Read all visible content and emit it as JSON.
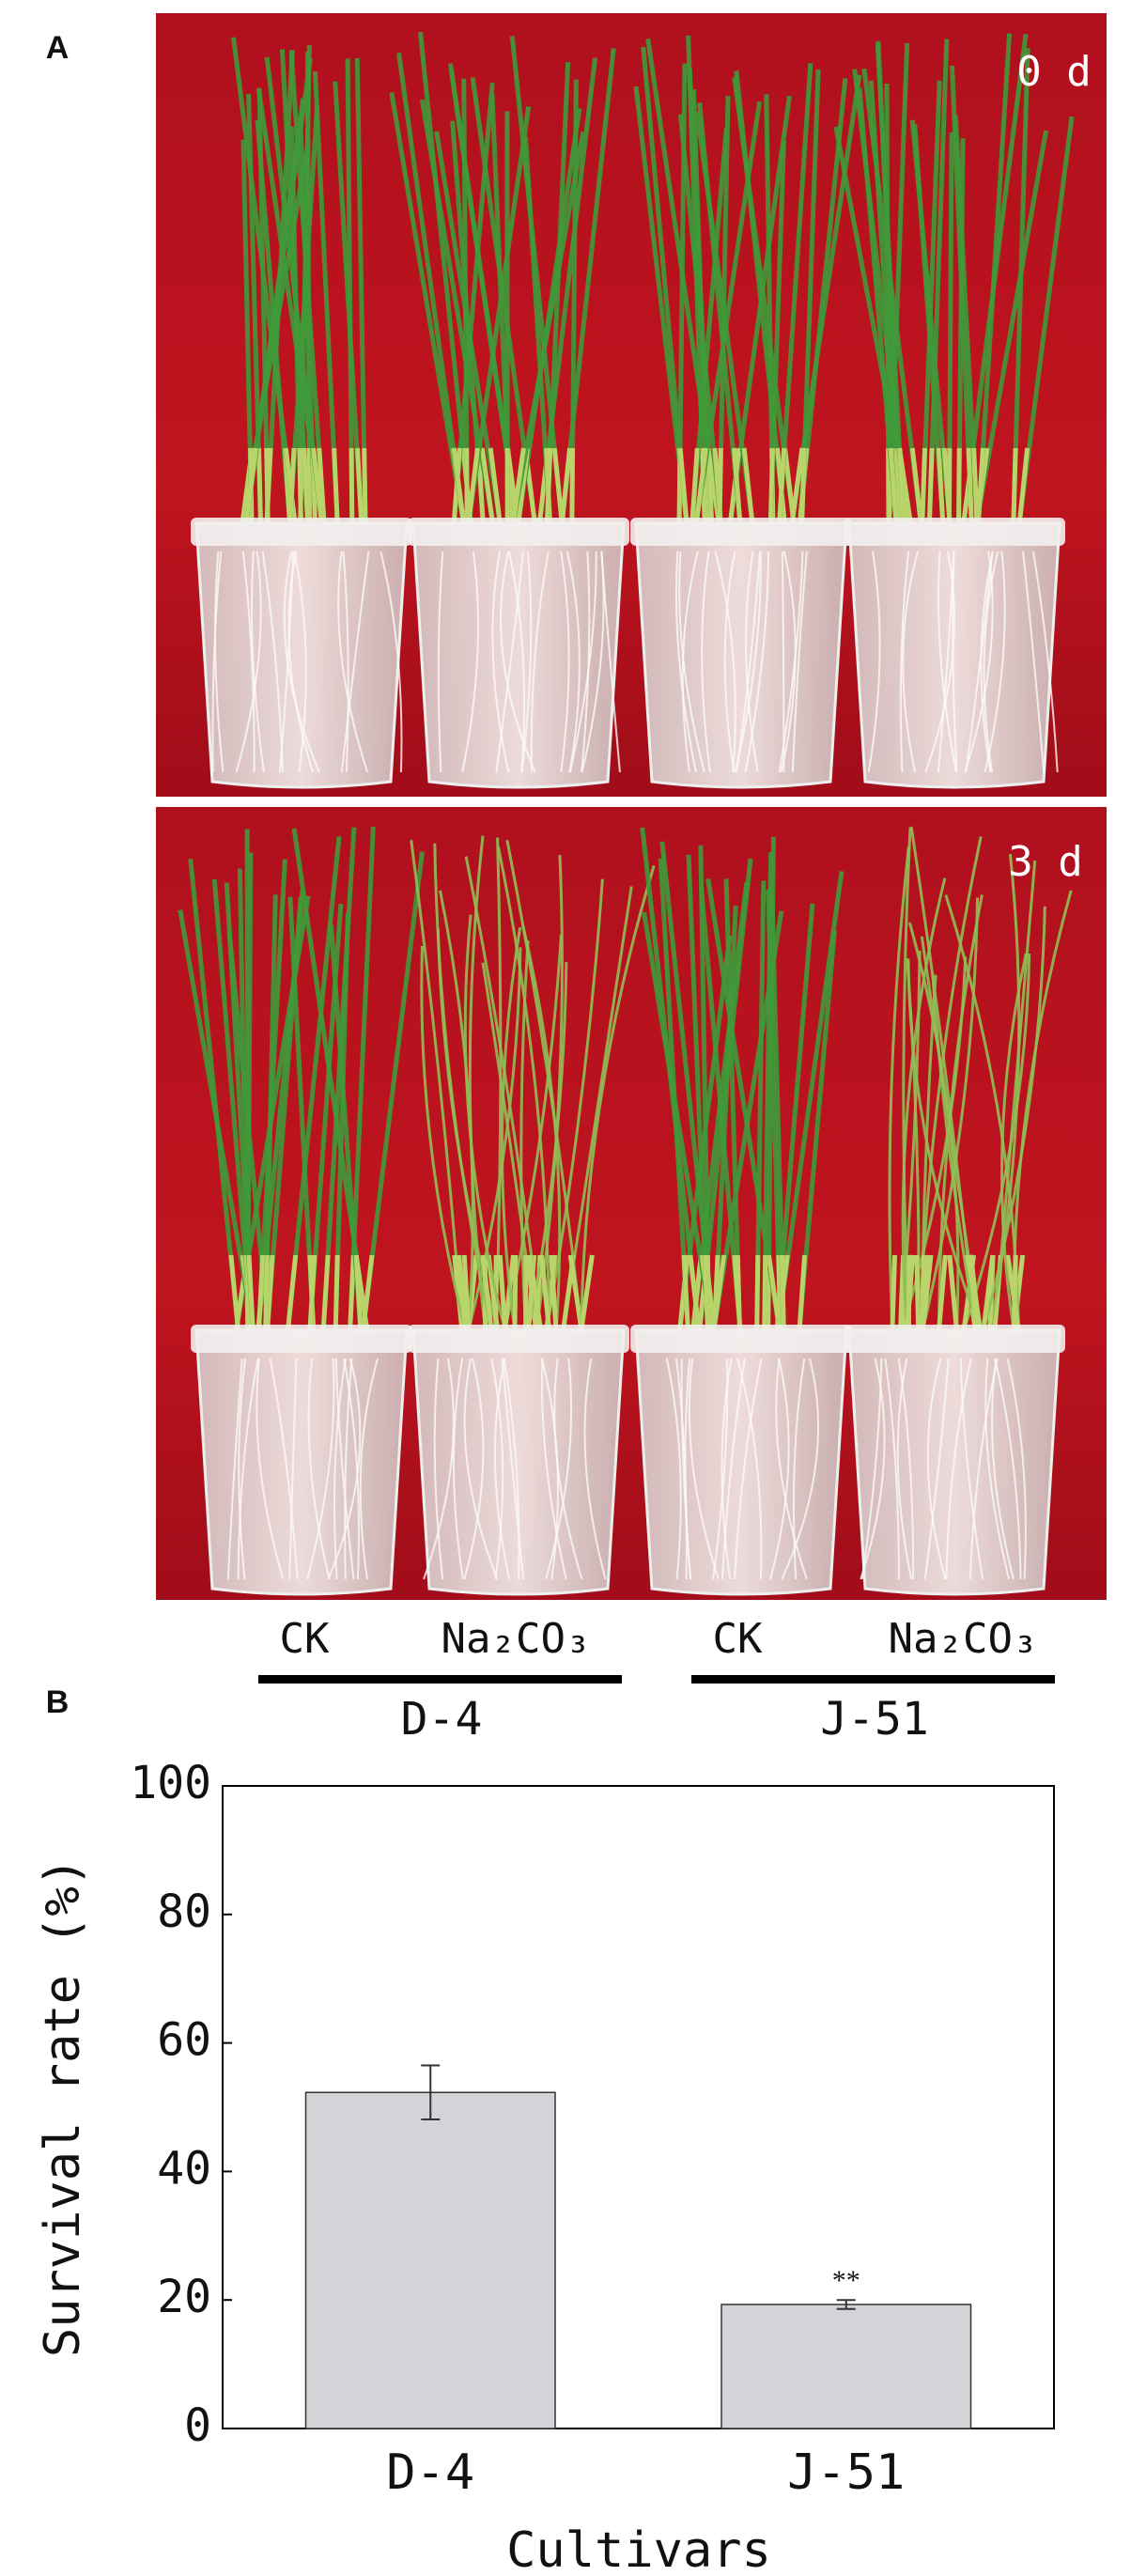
{
  "panel_a": {
    "label": "A",
    "photos": [
      {
        "label": "0 d"
      },
      {
        "label": "3 d"
      }
    ],
    "treatments": [
      "CK",
      "Na₂CO₃",
      "CK",
      "Na₂CO₃"
    ],
    "cultivars": [
      "D-4",
      "J-51"
    ]
  },
  "chart_data": {
    "type": "bar",
    "panel_label": "B",
    "ylabel": "Survival rate (%)",
    "xlabel": "Cultivars",
    "categories": [
      "D-4",
      "J-51"
    ],
    "values": [
      52.3,
      19.3
    ],
    "errors": [
      4.2,
      0.7
    ],
    "significance": [
      null,
      "**"
    ],
    "color": "#d3d4d8",
    "ylim": [
      0,
      100
    ],
    "yticks": [
      0,
      20,
      40,
      60,
      80,
      100
    ]
  }
}
